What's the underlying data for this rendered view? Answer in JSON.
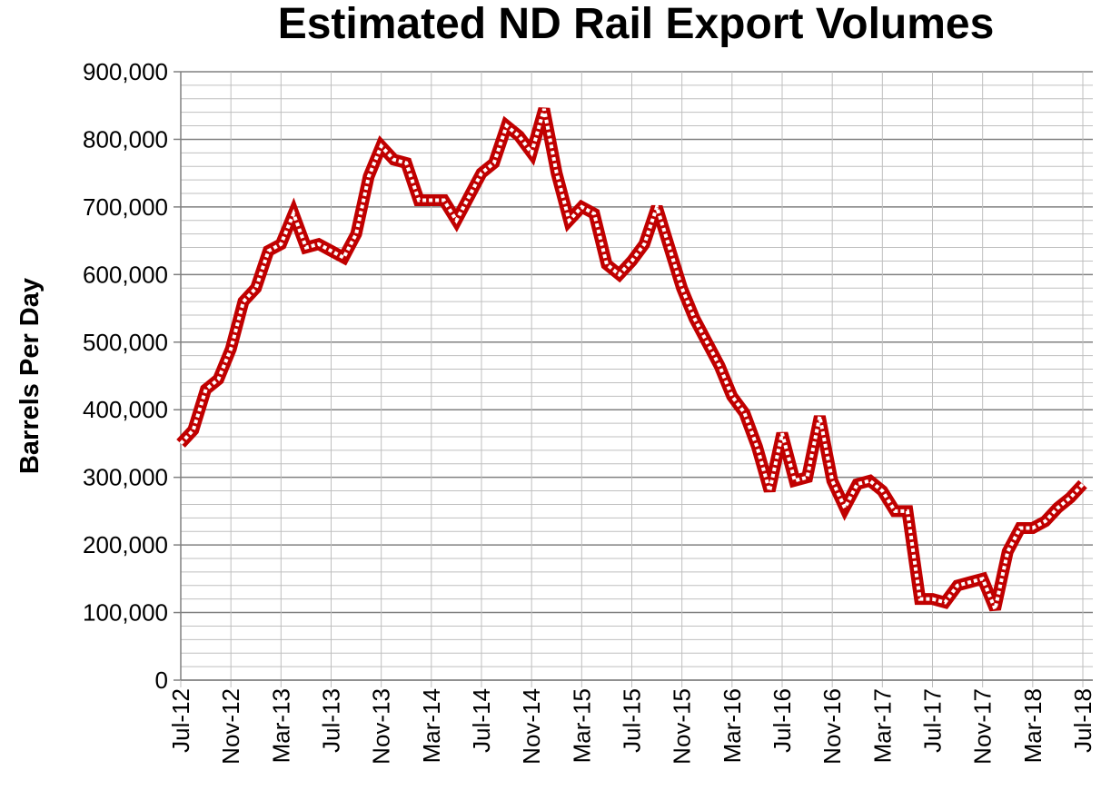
{
  "chart_data": {
    "type": "line",
    "title": "Estimated ND Rail Export Volumes",
    "y_label": "Barrels Per Day",
    "categories": [
      "Jul-12",
      null,
      null,
      null,
      "Nov-12",
      null,
      null,
      null,
      "Mar-13",
      null,
      null,
      null,
      "Jul-13",
      null,
      null,
      null,
      "Nov-13",
      null,
      null,
      null,
      "Mar-14",
      null,
      null,
      null,
      "Jul-14",
      null,
      null,
      null,
      "Nov-14",
      null,
      null,
      null,
      "Mar-15",
      null,
      null,
      null,
      "Jul-15",
      null,
      null,
      null,
      "Nov-15",
      null,
      null,
      null,
      "Mar-16",
      null,
      null,
      null,
      "Jul-16",
      null,
      null,
      null,
      "Nov-16",
      null,
      null,
      null,
      "Mar-17",
      null,
      null,
      null,
      "Jul-17",
      null,
      null,
      null,
      "Nov-17",
      null,
      null,
      null,
      "Mar-18",
      null,
      null,
      null,
      "Jul-18"
    ],
    "series": [
      {
        "color": "#c00000",
        "values": [
          350000,
          370000,
          430000,
          445000,
          490000,
          560000,
          580000,
          635000,
          645000,
          690000,
          640000,
          645000,
          635000,
          625000,
          660000,
          745000,
          790000,
          770000,
          765000,
          710000,
          710000,
          710000,
          680000,
          715000,
          750000,
          765000,
          820000,
          805000,
          780000,
          845000,
          750000,
          680000,
          700000,
          690000,
          615000,
          600000,
          620000,
          645000,
          700000,
          640000,
          580000,
          535000,
          500000,
          465000,
          420000,
          395000,
          345000,
          280000,
          365000,
          295000,
          300000,
          390000,
          295000,
          255000,
          290000,
          295000,
          280000,
          250000,
          250000,
          120000,
          120000,
          115000,
          140000,
          145000,
          150000,
          105000,
          190000,
          225000,
          225000,
          235000,
          255000,
          270000,
          290000
        ]
      }
    ],
    "ylim": [
      0,
      900000
    ],
    "yticks": [
      0,
      {
        "value": 100000,
        "label": "100,000"
      },
      {
        "value": 200000,
        "label": "200,000"
      },
      {
        "value": 300000,
        "label": "300,000"
      },
      {
        "value": 400000,
        "label": "400,000"
      },
      {
        "value": 500000,
        "label": "500,000"
      },
      {
        "value": 600000,
        "label": "600,000"
      },
      {
        "value": 700000,
        "label": "700,000"
      },
      {
        "value": 800000,
        "label": "800,000"
      },
      {
        "value": 900000,
        "label": "900,000"
      }
    ],
    "minor_yticks": [
      20000,
      40000,
      60000,
      80000,
      120000,
      140000,
      160000,
      180000,
      220000,
      240000,
      260000,
      280000,
      320000,
      340000,
      360000,
      380000,
      420000,
      440000,
      460000,
      480000,
      520000,
      540000,
      560000,
      580000,
      620000,
      640000,
      660000,
      680000,
      720000,
      740000,
      760000,
      780000,
      820000,
      840000,
      860000,
      880000
    ],
    "grid": true
  }
}
